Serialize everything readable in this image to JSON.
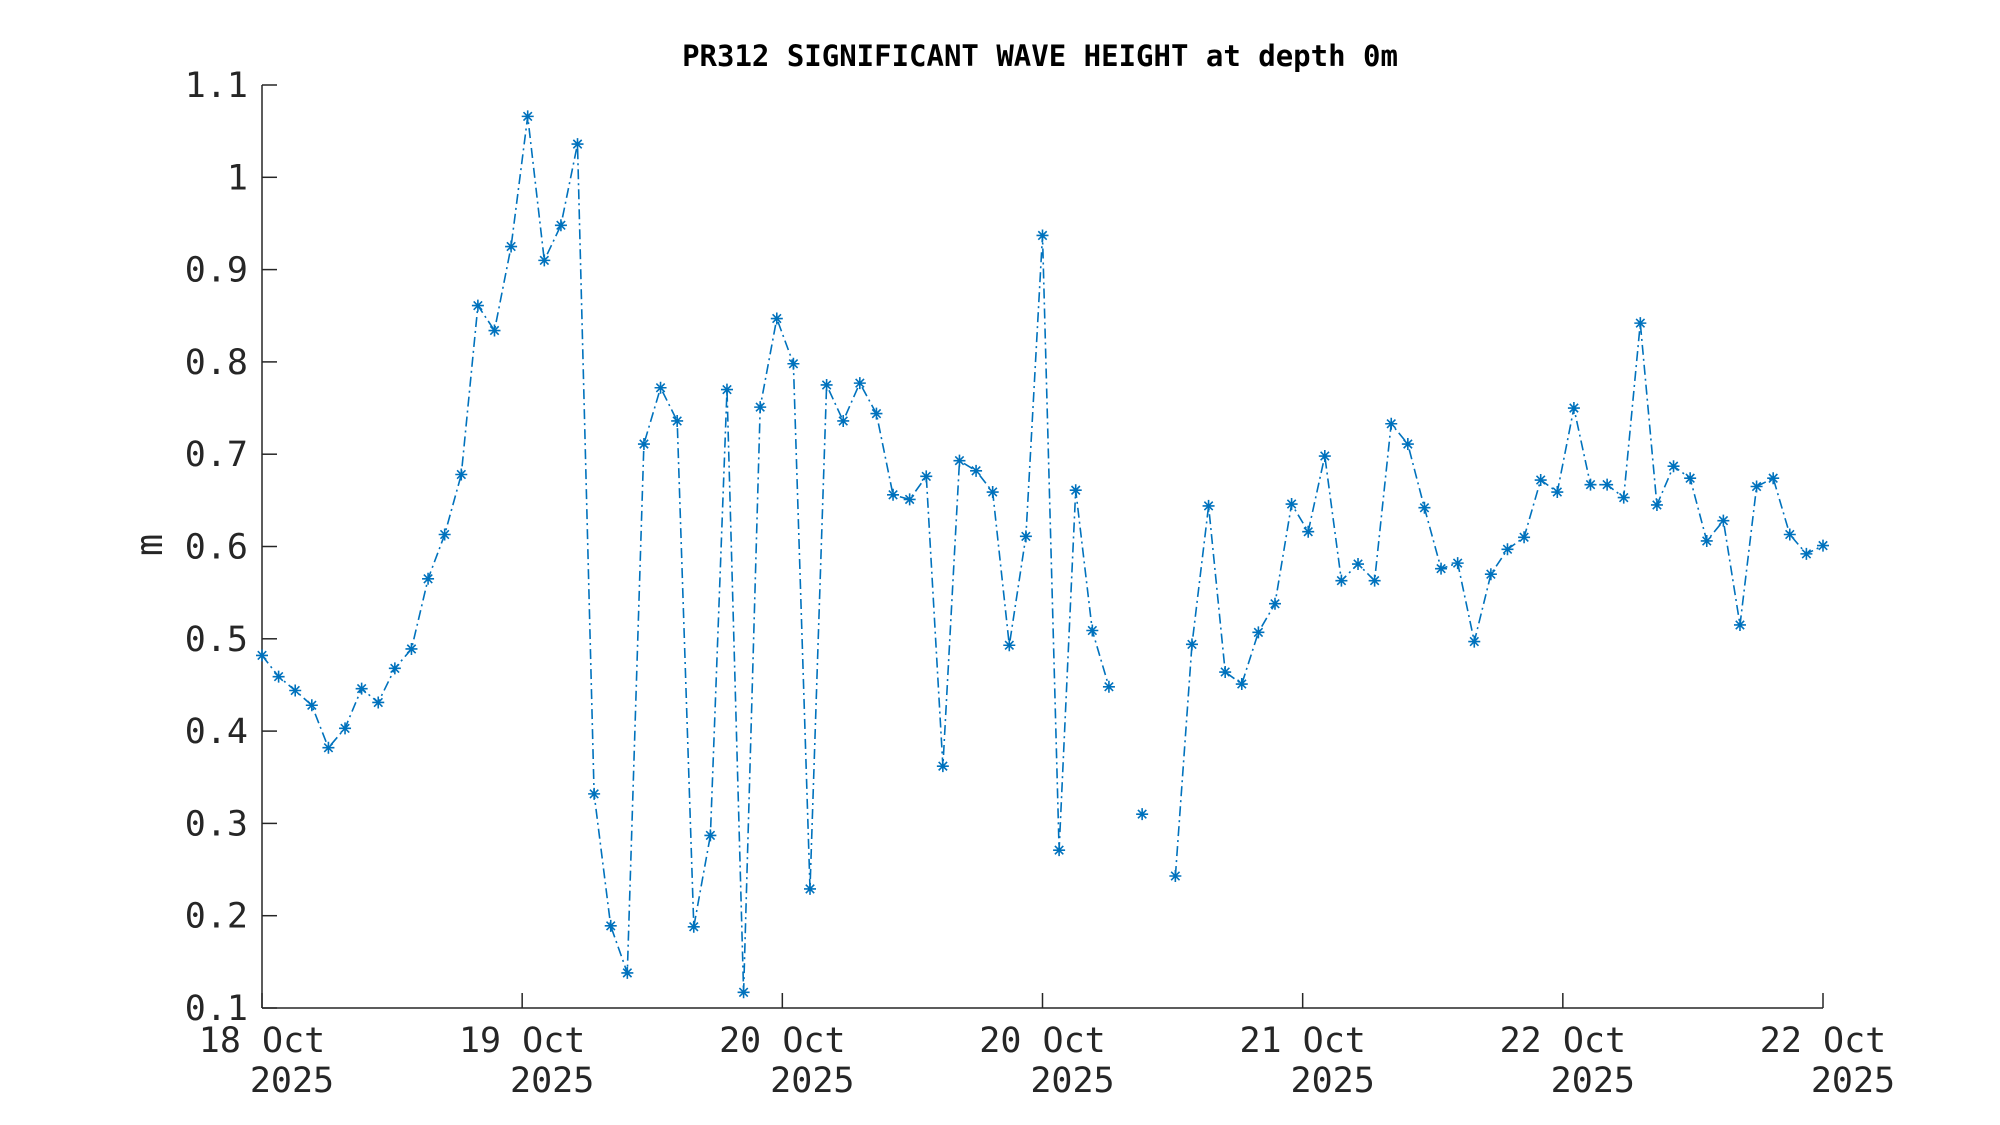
{
  "chart_data": {
    "type": "line",
    "title": "PR312 SIGNIFICANT WAVE HEIGHT at depth 0m",
    "xlabel": "",
    "ylabel": "m",
    "ylim": [
      0.1,
      1.1
    ],
    "yticks": [
      0.1,
      0.2,
      0.3,
      0.4,
      0.5,
      0.6,
      0.7,
      0.8,
      0.9,
      1,
      1.1
    ],
    "ytick_labels": [
      "0.1",
      "0.2",
      "0.3",
      "0.4",
      "0.5",
      "0.6",
      "0.7",
      "0.8",
      "0.9",
      "1",
      "1.1"
    ],
    "xticks": [
      {
        "line1": "18 Oct",
        "line2": "2025"
      },
      {
        "line1": "19 Oct",
        "line2": "2025"
      },
      {
        "line1": "20 Oct",
        "line2": "2025"
      },
      {
        "line1": "20 Oct",
        "line2": "2025"
      },
      {
        "line1": "21 Oct",
        "line2": "2025"
      },
      {
        "line1": "22 Oct",
        "line2": "2025"
      },
      {
        "line1": "22 Oct",
        "line2": "2025"
      }
    ],
    "grid": false,
    "line_style": "dash-dot",
    "marker": "asterisk",
    "color": "#0072BD",
    "series": [
      {
        "values": [
          0.482,
          0.459,
          0.444,
          0.428,
          0.382,
          0.403,
          0.446,
          0.431,
          0.468,
          0.489,
          0.565,
          0.613,
          0.678,
          0.861,
          0.834,
          0.925,
          1.066,
          0.91,
          0.948,
          1.036,
          0.332,
          0.189,
          0.138,
          0.711,
          0.772,
          0.736,
          0.188,
          0.287,
          0.77,
          0.117,
          0.751,
          0.847,
          0.798,
          0.229,
          0.775,
          0.736,
          0.777,
          0.744,
          0.656,
          0.651,
          0.676,
          0.362,
          0.693,
          0.682,
          0.659,
          0.493,
          0.611,
          0.937,
          0.271,
          0.661,
          0.509,
          0.448,
          null,
          0.31,
          null,
          0.243,
          0.494,
          0.644,
          0.464,
          0.451,
          0.507,
          0.538,
          0.646,
          0.616,
          0.698,
          0.563,
          0.581,
          0.563,
          0.733,
          0.711,
          0.642,
          0.576,
          0.582,
          0.497,
          0.57,
          0.597,
          0.61,
          0.672,
          0.659,
          0.75,
          0.667,
          0.667,
          0.653,
          0.842,
          0.645,
          0.687,
          0.674,
          0.606,
          0.628,
          0.515,
          0.665,
          0.674,
          0.613,
          0.592,
          0.601
        ]
      }
    ]
  }
}
